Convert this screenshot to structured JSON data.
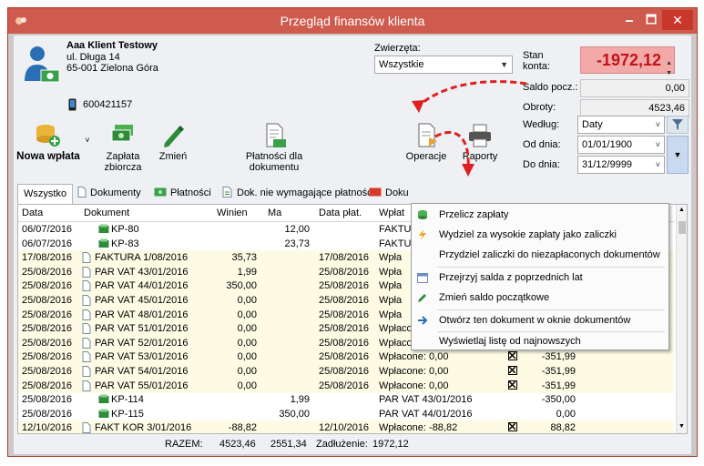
{
  "window": {
    "title": "Przegląd finansów klienta",
    "minimize": "🗕",
    "maximize": "🗖",
    "close": "✕"
  },
  "client": {
    "name": "Aaa Klient Testowy",
    "street": "ul. Długa 14",
    "city": "65-001 Zielona Góra",
    "phone": "600421157"
  },
  "zwierzeta": {
    "label": "Zwierzęta:",
    "value": "Wszystkie"
  },
  "balance": {
    "stan_label_1": "Stan",
    "stan_label_2": "konta:",
    "stan_value": "-1972,12",
    "saldo_label": "Saldo pocz.:",
    "saldo_value": "0,00",
    "obroty_label": "Obroty:",
    "obroty_value": "4523,46"
  },
  "toolbar": {
    "nowa_wplata": "Nowa wpłata",
    "zaplata_1": "Zapłata",
    "zaplata_2": "zbiorcza",
    "zmien": "Zmień",
    "platnosci_1": "Płatności dla",
    "platnosci_2": "dokumentu",
    "operacje": "Operacje",
    "raporty": "Raporty"
  },
  "filters": {
    "wedlug_label": "Według:",
    "wedlug_value": "Daty",
    "od_label": "Od dnia:",
    "od_value": "01/01/1900",
    "do_label": "Do dnia:",
    "do_value": "31/12/9999"
  },
  "tabs": [
    "Wszystko",
    "Dokumenty",
    "Płatności",
    "Dok. nie wymagające płatność",
    "Doku"
  ],
  "columns": {
    "data": "Data",
    "dokument": "Dokument",
    "winien": "Winien",
    "ma": "Ma",
    "data_plat": "Data płat.",
    "wplat": "Wpłat"
  },
  "rows": [
    {
      "date": "06/07/2016",
      "doc": "KP-80",
      "kind": "kp",
      "winien": "",
      "ma": "12,00",
      "dplat": "",
      "wplat": "FAKTU",
      "chk": false,
      "saldo": "",
      "y": false
    },
    {
      "date": "06/07/2016",
      "doc": "KP-83",
      "kind": "kp",
      "winien": "",
      "ma": "23,73",
      "dplat": "",
      "wplat": "FAKTU",
      "chk": false,
      "saldo": "",
      "y": false
    },
    {
      "date": "17/08/2016",
      "doc": "FAKTURA 1/08/2016",
      "kind": "doc",
      "winien": "35,73",
      "ma": "",
      "dplat": "17/08/2016",
      "wplat": "Wpła",
      "chk": false,
      "saldo": "",
      "y": true
    },
    {
      "date": "25/08/2016",
      "doc": "PAR VAT 43/01/2016",
      "kind": "doc",
      "winien": "1,99",
      "ma": "",
      "dplat": "25/08/2016",
      "wplat": "Wpła",
      "chk": false,
      "saldo": "",
      "y": true
    },
    {
      "date": "25/08/2016",
      "doc": "PAR VAT 44/01/2016",
      "kind": "doc",
      "winien": "350,00",
      "ma": "",
      "dplat": "25/08/2016",
      "wplat": "Wpła",
      "chk": false,
      "saldo": "",
      "y": true
    },
    {
      "date": "25/08/2016",
      "doc": "PAR VAT 45/01/2016",
      "kind": "doc",
      "winien": "0,00",
      "ma": "",
      "dplat": "25/08/2016",
      "wplat": "Wpła",
      "chk": false,
      "saldo": "",
      "y": true
    },
    {
      "date": "25/08/2016",
      "doc": "PAR VAT 48/01/2016",
      "kind": "doc",
      "winien": "0,00",
      "ma": "",
      "dplat": "25/08/2016",
      "wplat": "Wpła",
      "chk": false,
      "saldo": "",
      "y": true
    },
    {
      "date": "25/08/2016",
      "doc": "PAR VAT 51/01/2016",
      "kind": "doc",
      "winien": "0,00",
      "ma": "",
      "dplat": "25/08/2016",
      "wplat": "Wpłacone: 0,00",
      "chk": true,
      "saldo": "-351,99",
      "y": true
    },
    {
      "date": "25/08/2016",
      "doc": "PAR VAT 52/01/2016",
      "kind": "doc",
      "winien": "0,00",
      "ma": "",
      "dplat": "25/08/2016",
      "wplat": "Wpłacone: 0,00",
      "chk": true,
      "saldo": "-351,99",
      "y": true
    },
    {
      "date": "25/08/2016",
      "doc": "PAR VAT 53/01/2016",
      "kind": "doc",
      "winien": "0,00",
      "ma": "",
      "dplat": "25/08/2016",
      "wplat": "Wpłacone: 0,00",
      "chk": true,
      "saldo": "-351,99",
      "y": true
    },
    {
      "date": "25/08/2016",
      "doc": "PAR VAT 54/01/2016",
      "kind": "doc",
      "winien": "0,00",
      "ma": "",
      "dplat": "25/08/2016",
      "wplat": "Wpłacone: 0,00",
      "chk": true,
      "saldo": "-351,99",
      "y": true
    },
    {
      "date": "25/08/2016",
      "doc": "PAR VAT 55/01/2016",
      "kind": "doc",
      "winien": "0,00",
      "ma": "",
      "dplat": "25/08/2016",
      "wplat": "Wpłacone: 0,00",
      "chk": true,
      "saldo": "-351,99",
      "y": true
    },
    {
      "date": "25/08/2016",
      "doc": "KP-114",
      "kind": "kp",
      "winien": "",
      "ma": "1,99",
      "dplat": "",
      "wplat": "PAR VAT 43/01/2016",
      "chk": false,
      "saldo": "-350,00",
      "y": false
    },
    {
      "date": "25/08/2016",
      "doc": "KP-115",
      "kind": "kp",
      "winien": "",
      "ma": "350,00",
      "dplat": "",
      "wplat": "PAR VAT 44/01/2016",
      "chk": false,
      "saldo": "0,00",
      "y": false
    },
    {
      "date": "12/10/2016",
      "doc": "FAKT KOR 3/01/2016",
      "kind": "doc",
      "winien": "-88,82",
      "ma": "",
      "dplat": "12/10/2016",
      "wplat": "Wpłacone: -88,82",
      "chk": true,
      "saldo": "88,82",
      "y": true
    }
  ],
  "footer": {
    "razem_label": "RAZEM:",
    "winien_total": "4523,46",
    "ma_total": "2551,34",
    "zadluzenie_label": "Zadłużenie:",
    "zadluzenie_value": "1972,12"
  },
  "menu": {
    "items": [
      {
        "label": "Przelicz zapłaty",
        "icon": "recalc-icon"
      },
      {
        "label": "Wydziel za wysokie zapłaty jako zaliczki",
        "icon": "lightning-icon"
      },
      {
        "label": "Przydziel zaliczki do niezapłaconych dokumentów",
        "icon": "none"
      },
      {
        "label": "Przejrzyj salda z poprzednich lat",
        "icon": "calendar-icon"
      },
      {
        "label": "Zmień saldo początkowe",
        "icon": "pencil-icon"
      },
      {
        "label": "Otwórz ten dokument w oknie dokumentów",
        "icon": "arrow-right-icon"
      },
      {
        "label": "Wyświetlaj listę od najnowszych",
        "icon": "none"
      }
    ]
  },
  "colors": {
    "title_bar": "#cf5a4e",
    "stan_bg": "#f4a9a9",
    "stan_text": "#c0141a",
    "annotation_arrow": "#e02020"
  }
}
